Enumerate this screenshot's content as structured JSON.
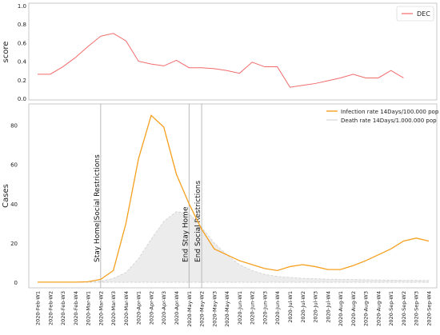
{
  "chart_data": [
    {
      "type": "line",
      "title": "",
      "xlabel": "",
      "ylabel": "score",
      "ylim": [
        0.0,
        1.0
      ],
      "yticks": [
        "0.0",
        "0.2",
        "0.4",
        "0.6",
        "0.8",
        "1.0"
      ],
      "grid": false,
      "legend_placement": "top-right",
      "series": [
        {
          "name": "DEC",
          "color": "#f26b6b",
          "values": [
            0.26,
            0.26,
            0.34,
            0.44,
            0.56,
            0.67,
            0.7,
            0.62,
            0.4,
            0.37,
            0.35,
            0.41,
            0.33,
            0.33,
            0.32,
            0.3,
            0.27,
            0.39,
            0.34,
            0.34,
            0.12,
            0.14,
            0.16,
            0.19,
            0.22,
            0.26,
            0.22,
            0.22,
            0.3,
            0.22
          ]
        }
      ]
    },
    {
      "type": "line",
      "title": "",
      "xlabel": "",
      "ylabel": "Cases",
      "ylim": [
        -2,
        90
      ],
      "yticks": [
        "0",
        "20",
        "40",
        "60",
        "80"
      ],
      "grid": false,
      "legend_placement": "top-right",
      "categories": [
        "2020-Feb-W1",
        "2020-Feb-W2",
        "2020-Feb-W3",
        "2020-Feb-W4",
        "2020-Mar-W1",
        "2020-Mar-W2",
        "2020-Mar-W3",
        "2020-Mar-W4",
        "2020-Apr-W1",
        "2020-Apr-W2",
        "2020-Apr-W3",
        "2020-Apr-W4",
        "2020-May-W1",
        "2020-May-W2",
        "2020-May-W3",
        "2020-May-W4",
        "2020-Jun-W1",
        "2020-Jun-W2",
        "2020-Jun-W3",
        "2020-Jun-W4",
        "2020-Jul-W1",
        "2020-Jul-W2",
        "2020-Jul-W3",
        "2020-Jul-W4",
        "2020-Aug-W1",
        "2020-Aug-W2",
        "2020-Aug-W3",
        "2020-Aug-W4",
        "2020-Sep-W1",
        "2020-Sep-W2",
        "2020-Sep-W3",
        "2020-Sep-W4"
      ],
      "series": [
        {
          "name": "Infection rate 14Days/100.000 pop",
          "color": "#f5a01e",
          "values": [
            0.1,
            0.1,
            0.1,
            0.1,
            0.3,
            1.5,
            6,
            30,
            63,
            85,
            79,
            55,
            40,
            27,
            17,
            14,
            11,
            9,
            7,
            6,
            8,
            9,
            8,
            6.5,
            6.5,
            8.5,
            11,
            14,
            17,
            21,
            22.5,
            21
          ]
        },
        {
          "name": "Death rate 14Days/1.000.000 pop",
          "color": "#dcdcdc",
          "values": [
            0,
            0,
            0,
            0,
            0,
            0.5,
            2,
            5,
            12,
            22,
            31,
            36,
            35,
            28,
            20,
            14,
            9,
            6,
            4,
            3,
            2.5,
            2,
            1.8,
            1.6,
            1.5,
            1.4,
            1.3,
            1.2,
            1.1,
            1.0,
            1.0,
            0.9
          ]
        }
      ],
      "annotations": [
        {
          "label": "Stay Home|Social Restrictions",
          "x": "2020-Mar-W2"
        },
        {
          "label": "End Stay Home",
          "x": "2020-May-W1"
        },
        {
          "label": "End Social Restrictions",
          "x": "2020-May-W2"
        }
      ]
    }
  ]
}
